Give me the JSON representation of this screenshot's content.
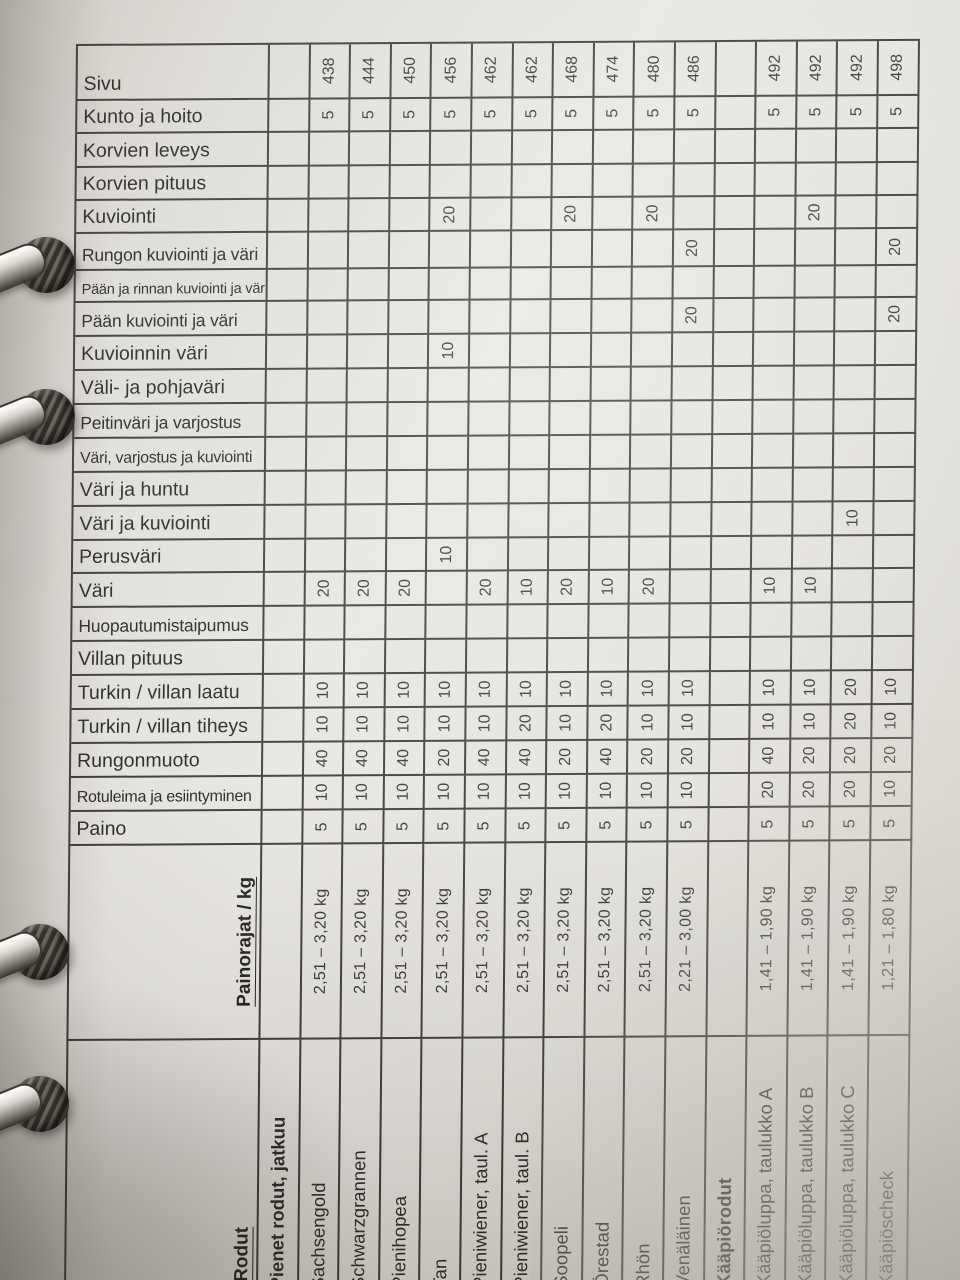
{
  "table": {
    "bold_columns": [
      0,
      11
    ],
    "rows": [
      {
        "label": "Sivu",
        "size": "l",
        "type": "normal",
        "values": [
          "",
          "438",
          "444",
          "450",
          "456",
          "462",
          "462",
          "468",
          "474",
          "480",
          "486",
          "",
          "492",
          "492",
          "492",
          "498"
        ]
      },
      {
        "label": "Kunto ja hoito",
        "size": "l",
        "type": "normal",
        "values": [
          "",
          "5",
          "5",
          "5",
          "5",
          "5",
          "5",
          "5",
          "5",
          "5",
          "5",
          "",
          "5",
          "5",
          "5",
          "5"
        ]
      },
      {
        "label": "Korvien leveys",
        "size": "l",
        "type": "normal",
        "values": [
          "",
          "",
          "",
          "",
          "",
          "",
          "",
          "",
          "",
          "",
          "",
          "",
          "",
          "",
          "",
          ""
        ]
      },
      {
        "label": "Korvien pituus",
        "size": "l",
        "type": "normal",
        "values": [
          "",
          "",
          "",
          "",
          "",
          "",
          "",
          "",
          "",
          "",
          "",
          "",
          "",
          "",
          "",
          ""
        ]
      },
      {
        "label": "Kuviointi",
        "size": "l",
        "type": "normal",
        "values": [
          "",
          "",
          "",
          "",
          "20",
          "",
          "",
          "20",
          "",
          "20",
          "",
          "",
          "",
          "20",
          "",
          ""
        ]
      },
      {
        "label": "Rungon kuviointi ja väri",
        "size": "m",
        "type": "normal",
        "values": [
          "",
          "",
          "",
          "",
          "",
          "",
          "",
          "",
          "",
          "",
          "20",
          "",
          "",
          "",
          "",
          "20"
        ]
      },
      {
        "label": "Pään ja rinnan kuviointi ja väri",
        "size": "s",
        "type": "normal",
        "values": [
          "",
          "",
          "",
          "",
          "",
          "",
          "",
          "",
          "",
          "",
          "",
          "",
          "",
          "",
          "",
          ""
        ]
      },
      {
        "label": "Pään kuviointi ja väri",
        "size": "m",
        "type": "normal",
        "values": [
          "",
          "",
          "",
          "",
          "",
          "",
          "",
          "",
          "",
          "",
          "20",
          "",
          "",
          "",
          "",
          "20"
        ]
      },
      {
        "label": "Kuvioinnin väri",
        "size": "l",
        "type": "normal",
        "values": [
          "",
          "",
          "",
          "",
          "10",
          "",
          "",
          "",
          "",
          "",
          "",
          "",
          "",
          "",
          "",
          ""
        ]
      },
      {
        "label": "Väli- ja pohjaväri",
        "size": "l",
        "type": "normal",
        "values": [
          "",
          "",
          "",
          "",
          "",
          "",
          "",
          "",
          "",
          "",
          "",
          "",
          "",
          "",
          "",
          ""
        ]
      },
      {
        "label": "Peitinväri ja varjostus",
        "size": "m",
        "type": "normal",
        "values": [
          "",
          "",
          "",
          "",
          "",
          "",
          "",
          "",
          "",
          "",
          "",
          "",
          "",
          "",
          "",
          ""
        ]
      },
      {
        "label": "Väri, varjostus ja kuviointi",
        "size": "t",
        "type": "normal",
        "values": [
          "",
          "",
          "",
          "",
          "",
          "",
          "",
          "",
          "",
          "",
          "",
          "",
          "",
          "",
          "",
          ""
        ]
      },
      {
        "label": "Väri ja huntu",
        "size": "l",
        "type": "normal",
        "values": [
          "",
          "",
          "",
          "",
          "",
          "",
          "",
          "",
          "",
          "",
          "",
          "",
          "",
          "",
          "",
          ""
        ]
      },
      {
        "label": "Väri ja kuviointi",
        "size": "l",
        "type": "normal",
        "values": [
          "",
          "",
          "",
          "",
          "",
          "",
          "",
          "",
          "",
          "",
          "",
          "",
          "",
          "",
          "10",
          ""
        ]
      },
      {
        "label": "Perusväri",
        "size": "l",
        "type": "normal",
        "values": [
          "",
          "",
          "",
          "",
          "10",
          "",
          "",
          "",
          "",
          "",
          "",
          "",
          "",
          "",
          "",
          ""
        ]
      },
      {
        "label": "Väri",
        "size": "l",
        "type": "normal",
        "values": [
          "",
          "20",
          "20",
          "20",
          "",
          "20",
          "10",
          "20",
          "10",
          "20",
          "",
          "",
          "10",
          "10",
          "",
          ""
        ]
      },
      {
        "label": "Huopautumistaipumus",
        "size": "m",
        "type": "normal",
        "values": [
          "",
          "",
          "",
          "",
          "",
          "",
          "",
          "",
          "",
          "",
          "",
          "",
          "",
          "",
          "",
          ""
        ]
      },
      {
        "label": "Villan pituus",
        "size": "l",
        "type": "normal",
        "values": [
          "",
          "",
          "",
          "",
          "",
          "",
          "",
          "",
          "",
          "",
          "",
          "",
          "",
          "",
          "",
          ""
        ]
      },
      {
        "label": "Turkin / villan laatu",
        "size": "l",
        "type": "normal",
        "values": [
          "",
          "10",
          "10",
          "10",
          "10",
          "10",
          "10",
          "10",
          "10",
          "10",
          "10",
          "",
          "10",
          "10",
          "20",
          "10"
        ]
      },
      {
        "label": "Turkin / villan tiheys",
        "size": "l",
        "type": "normal",
        "values": [
          "",
          "10",
          "10",
          "10",
          "10",
          "10",
          "20",
          "10",
          "20",
          "10",
          "10",
          "",
          "10",
          "10",
          "20",
          "10"
        ]
      },
      {
        "label": "Rungonmuoto",
        "size": "l",
        "type": "normal",
        "values": [
          "",
          "40",
          "40",
          "40",
          "20",
          "40",
          "40",
          "20",
          "40",
          "20",
          "20",
          "",
          "40",
          "20",
          "20",
          "20"
        ]
      },
      {
        "label": "Rotuleima ja esiintyminen",
        "size": "t",
        "type": "normal",
        "values": [
          "",
          "10",
          "10",
          "10",
          "10",
          "10",
          "10",
          "10",
          "10",
          "10",
          "10",
          "",
          "20",
          "20",
          "20",
          "10"
        ]
      },
      {
        "label": "Paino",
        "size": "l",
        "type": "normal",
        "values": [
          "",
          "5",
          "5",
          "5",
          "5",
          "5",
          "5",
          "5",
          "5",
          "5",
          "5",
          "",
          "5",
          "5",
          "5",
          "5"
        ]
      },
      {
        "label": "Painorajat / kg",
        "size": "l",
        "type": "weights",
        "values": [
          "",
          "2,51 – 3,20 kg",
          "2,51 – 3,20 kg",
          "2,51 – 3,20 kg",
          "2,51 – 3,20 kg",
          "2,51 – 3,20 kg",
          "2,51 – 3,20 kg",
          "2,51 – 3,20 kg",
          "2,51 – 3,20 kg",
          "2,51 – 3,20 kg",
          "2,21 – 3,00 kg",
          "",
          "1,41 – 1,90 kg",
          "1,41 – 1,90 kg",
          "1,41 – 1,90 kg",
          "1,21 – 1,80 kg"
        ]
      },
      {
        "label": "Rodut",
        "size": "l",
        "type": "breeds",
        "values": [
          "Pienet rodut, jatkuu",
          "Sachsengold",
          "Schwarzgrannen",
          "Pienihopea",
          "Tan",
          "Pieniwiener, taul. A",
          "Pieniwiener, taul. B",
          "Soopeli",
          "Örestad",
          "Rhön",
          "Venäläinen",
          "Kääpiörodut",
          "Kääpiöluppa, taulukko A",
          "Kääpiöluppa, taulukko B",
          "Kääpiöluppa, taulukko C",
          "Kääpiöscheck"
        ]
      }
    ]
  },
  "icons": {
    "binder_ring": "binder-ring"
  }
}
